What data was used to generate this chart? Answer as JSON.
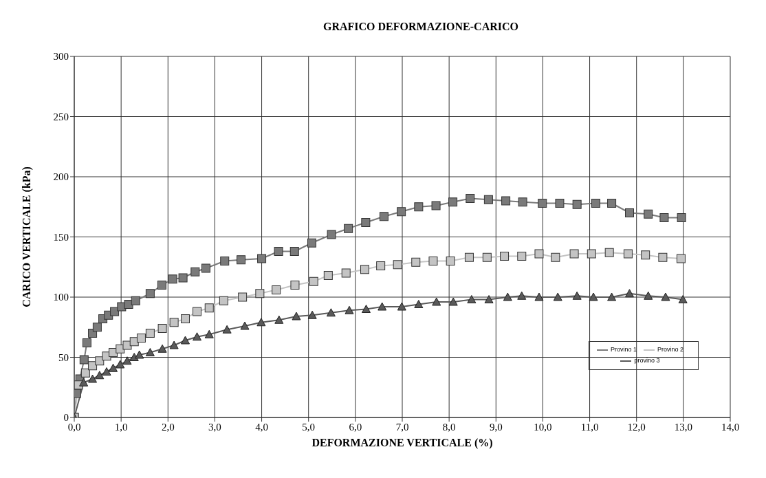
{
  "chart_data": {
    "type": "line",
    "title": "GRAFICO DEFORMAZIONE-CARICO",
    "xlabel": "DEFORMAZIONE VERTICALE (%)",
    "ylabel": "CARICO VERTICALE (kPa)",
    "xlim": [
      0,
      14
    ],
    "xticks": [
      {
        "value": 0,
        "label": "0,0"
      },
      {
        "value": 1,
        "label": "1,0"
      },
      {
        "value": 2,
        "label": "2,0"
      },
      {
        "value": 3,
        "label": "3,0"
      },
      {
        "value": 4,
        "label": "4,0"
      },
      {
        "value": 5,
        "label": "5,0"
      },
      {
        "value": 6,
        "label": "6,0"
      },
      {
        "value": 7,
        "label": "7,0"
      },
      {
        "value": 8,
        "label": "8,0"
      },
      {
        "value": 9,
        "label": "9,0"
      },
      {
        "value": 10,
        "label": "10,0"
      },
      {
        "value": 11,
        "label": "11,0"
      },
      {
        "value": 12,
        "label": "12,0"
      },
      {
        "value": 13,
        "label": "13,0"
      },
      {
        "value": 14,
        "label": "14,0"
      }
    ],
    "ylim": [
      0,
      300
    ],
    "yticks": [
      0,
      50,
      100,
      150,
      200,
      250,
      300
    ],
    "grid": true,
    "legend": "bottom right",
    "series": [
      {
        "name": "Provino 1",
        "color": "#7a7a7a",
        "marker": "square",
        "x": [
          0,
          0.05,
          0.12,
          0.21,
          0.27,
          0.39,
          0.49,
          0.61,
          0.73,
          0.86,
          1.01,
          1.16,
          1.31,
          1.62,
          1.87,
          2.1,
          2.32,
          2.58,
          2.81,
          3.21,
          3.56,
          4.0,
          4.36,
          4.7,
          5.07,
          5.49,
          5.85,
          6.22,
          6.61,
          6.98,
          7.35,
          7.72,
          8.08,
          8.45,
          8.84,
          9.21,
          9.57,
          9.99,
          10.36,
          10.73,
          11.13,
          11.47,
          11.85,
          12.25,
          12.59,
          12.96
        ],
        "values": [
          0,
          20,
          32,
          48,
          62,
          70,
          75,
          82,
          85,
          88,
          92,
          94,
          97,
          103,
          110,
          115,
          116,
          121,
          124,
          130,
          131,
          132,
          138,
          138,
          145,
          152,
          157,
          162,
          167,
          171,
          175,
          176,
          179,
          182,
          181,
          180,
          179,
          178,
          178,
          177,
          178,
          178,
          170,
          169,
          166,
          166
        ]
      },
      {
        "name": "Provino 2",
        "color": "#c4c4c4",
        "marker": "square",
        "x": [
          0,
          0.09,
          0.24,
          0.39,
          0.54,
          0.69,
          0.83,
          0.98,
          1.13,
          1.28,
          1.43,
          1.62,
          1.88,
          2.13,
          2.37,
          2.62,
          2.88,
          3.19,
          3.59,
          3.96,
          4.31,
          4.71,
          5.11,
          5.42,
          5.8,
          6.2,
          6.54,
          6.9,
          7.29,
          7.66,
          8.03,
          8.43,
          8.81,
          9.18,
          9.55,
          9.92,
          10.27,
          10.67,
          11.04,
          11.42,
          11.82,
          12.19,
          12.56,
          12.95
        ],
        "values": [
          0,
          27,
          37,
          43,
          47,
          51,
          54,
          57,
          60,
          63,
          66,
          70,
          74,
          79,
          82,
          88,
          91,
          97,
          100,
          103,
          106,
          110,
          113,
          118,
          120,
          123,
          126,
          127,
          129,
          130,
          130,
          133,
          133,
          134,
          134,
          136,
          133,
          136,
          136,
          137,
          136,
          135,
          133,
          132
        ]
      },
      {
        "name": "provino 3",
        "color": "#5a5a5a",
        "marker": "triangle",
        "x": [
          0,
          0.2,
          0.39,
          0.54,
          0.69,
          0.83,
          0.98,
          1.13,
          1.28,
          1.39,
          1.62,
          1.88,
          2.13,
          2.37,
          2.62,
          2.88,
          3.26,
          3.64,
          3.99,
          4.37,
          4.74,
          5.08,
          5.48,
          5.87,
          6.23,
          6.57,
          6.99,
          7.35,
          7.73,
          8.09,
          8.48,
          8.85,
          9.25,
          9.55,
          9.92,
          10.32,
          10.73,
          11.08,
          11.47,
          11.85,
          12.25,
          12.62,
          12.99
        ],
        "values": [
          0,
          29,
          32,
          35,
          38,
          41,
          44,
          47,
          50,
          52,
          54,
          57,
          60,
          64,
          67,
          69,
          73,
          76,
          79,
          81,
          84,
          85,
          87,
          89,
          90,
          92,
          92,
          94,
          96,
          96,
          98,
          98,
          100,
          101,
          100,
          100,
          101,
          100,
          100,
          103,
          101,
          100,
          98
        ]
      }
    ]
  }
}
